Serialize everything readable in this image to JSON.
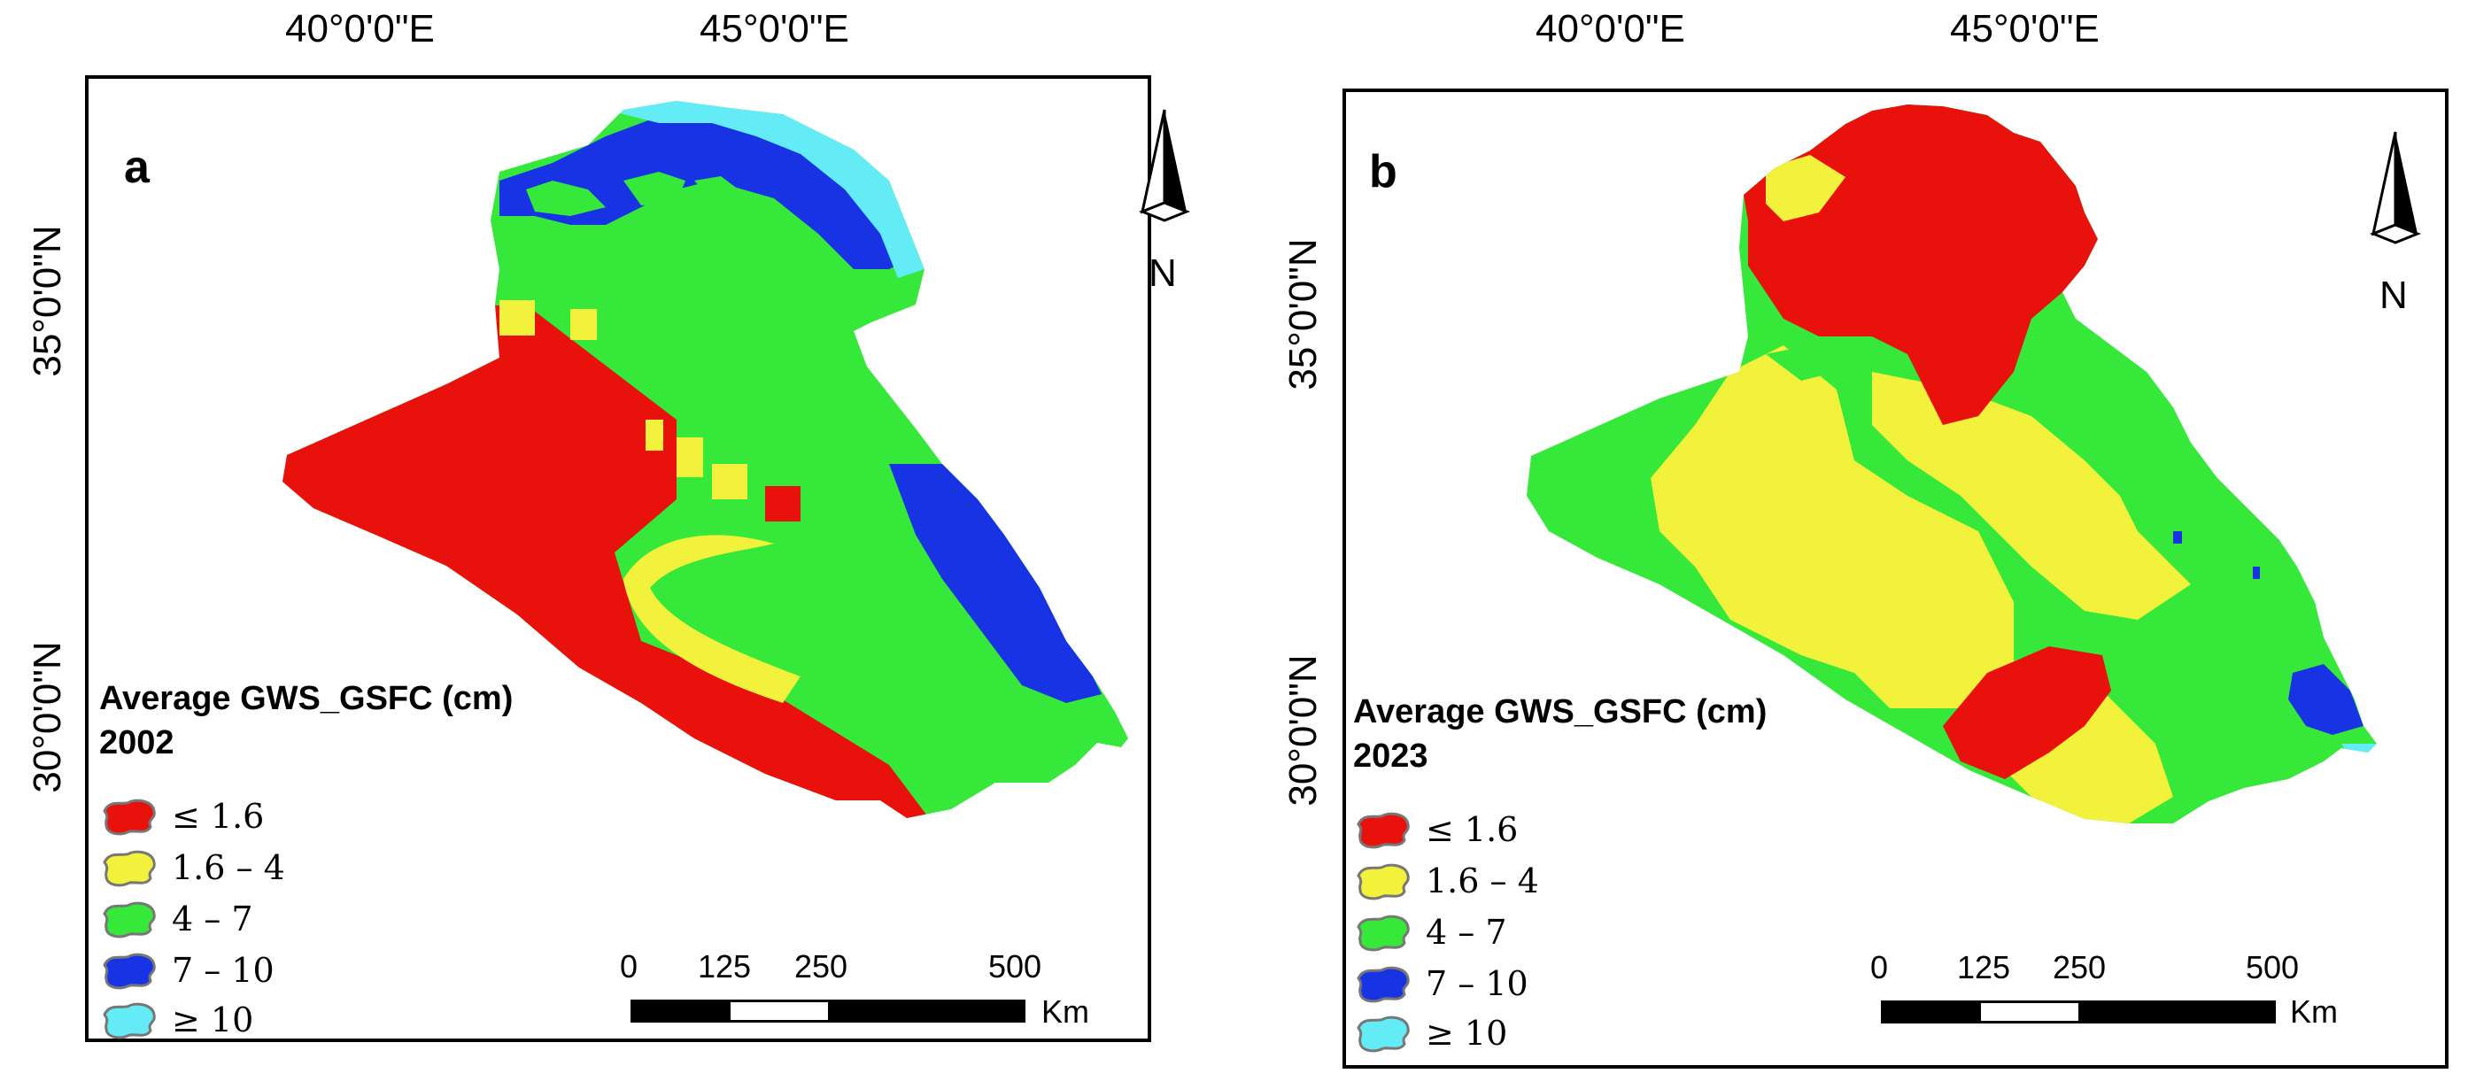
{
  "colors": {
    "class_1": "#e8110b",
    "class_2": "#f2f23c",
    "class_3": "#35e83a",
    "class_4": "#1733e4",
    "class_5": "#63ecf5",
    "frame": "#000000"
  },
  "panels": [
    {
      "label": "a",
      "year": "2002",
      "legend_title": "Average GWS_GSFC (cm)",
      "lon_labels": [
        "40°0'0\"E",
        "45°0'0\"E"
      ],
      "lat_labels": [
        "35°0'0\"N",
        "30°0'0\"N"
      ],
      "north_label": "N",
      "scale": {
        "ticks": [
          "0",
          "125",
          "250",
          "500"
        ],
        "unit": "Km"
      }
    },
    {
      "label": "b",
      "year": "2023",
      "legend_title": "Average GWS_GSFC (cm)",
      "lon_labels": [
        "40°0'0\"E",
        "45°0'0\"E"
      ],
      "lat_labels": [
        "35°0'0\"N",
        "30°0'0\"N"
      ],
      "north_label": "N",
      "scale": {
        "ticks": [
          "0",
          "125",
          "250",
          "500"
        ],
        "unit": "Km"
      }
    }
  ],
  "legend_classes": [
    {
      "label": "≤ 1.6",
      "color": "#e8110b"
    },
    {
      "label": "1.6 – 4",
      "color": "#f2f23c"
    },
    {
      "label": "4 – 7",
      "color": "#35e83a"
    },
    {
      "label": "7 – 10",
      "color": "#1733e4"
    },
    {
      "label": "≥ 10",
      "color": "#63ecf5"
    }
  ]
}
